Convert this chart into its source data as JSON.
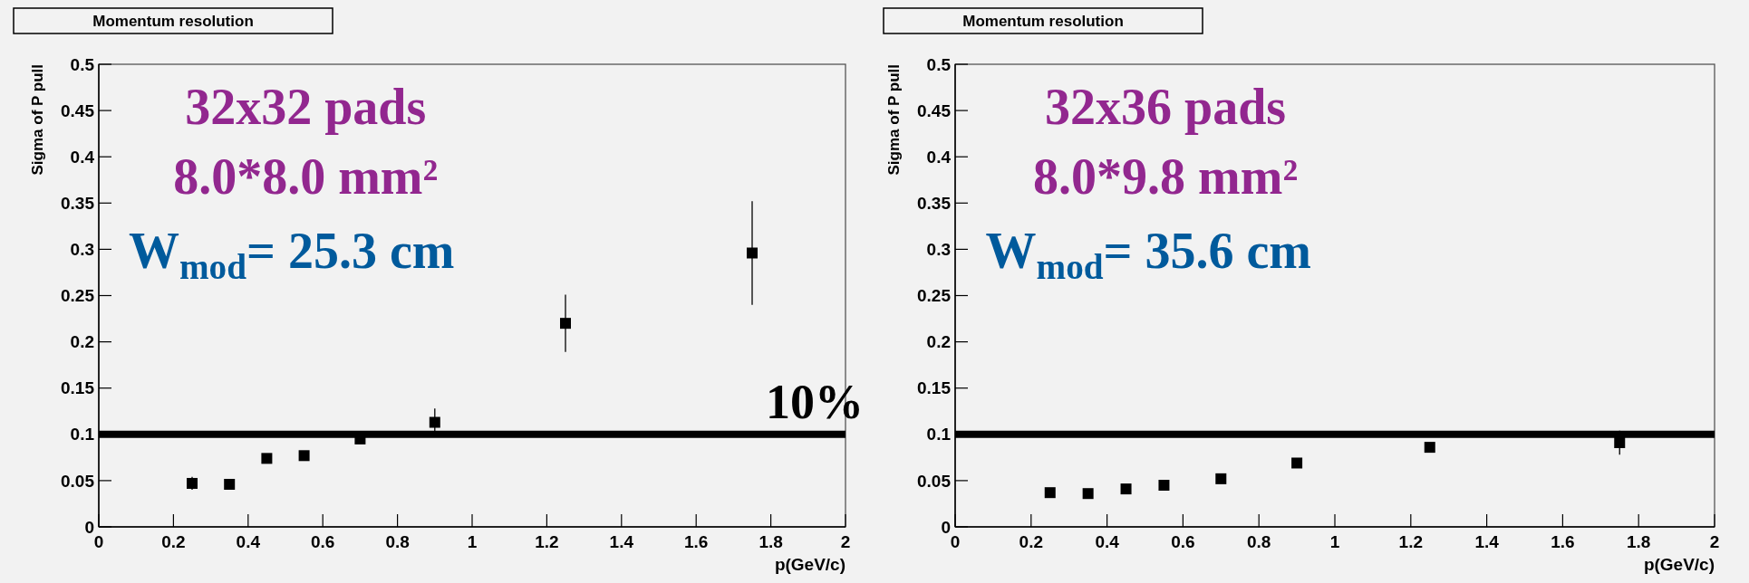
{
  "chart_data": [
    {
      "type": "scatter",
      "title": "Momentum resolution",
      "xlabel": "p(GeV/c)",
      "ylabel": "Sigma of P pull",
      "x": [
        0.25,
        0.35,
        0.45,
        0.55,
        0.7,
        0.9,
        1.25,
        1.75
      ],
      "series": [
        {
          "color": "#000000",
          "values": [
            0.047,
            0.046,
            0.074,
            0.077,
            0.095,
            0.113,
            0.22,
            0.296
          ],
          "errors": [
            0.007,
            null,
            null,
            null,
            null,
            0.015,
            0.031,
            0.056
          ]
        }
      ],
      "xlim": [
        0,
        2
      ],
      "xticks": [
        0,
        0.2,
        0.4,
        0.6,
        0.8,
        1,
        1.2,
        1.4,
        1.6,
        1.8,
        2
      ],
      "ylim": [
        0,
        0.5
      ],
      "yticks": [
        0,
        0.05,
        0.1,
        0.15,
        0.2,
        0.25,
        0.3,
        0.35,
        0.4,
        0.45,
        0.5
      ],
      "marker": "square",
      "grid": false,
      "ref_lines": [
        {
          "axis": "y",
          "value": 0.1,
          "label": "10%",
          "color": "#000000"
        }
      ],
      "annotations": [
        "32x32 pads",
        "8.0*8.0 mm²",
        "W$_{mod}$= 25.3 cm"
      ]
    },
    {
      "type": "scatter",
      "title": "Momentum resolution",
      "xlabel": "p(GeV/c)",
      "ylabel": "Sigma of P pull",
      "x": [
        0.25,
        0.35,
        0.45,
        0.55,
        0.7,
        0.9,
        1.25,
        1.75
      ],
      "series": [
        {
          "color": "#000000",
          "values": [
            0.037,
            0.036,
            0.041,
            0.045,
            0.052,
            0.069,
            0.086,
            0.091
          ],
          "errors": [
            0.005,
            null,
            null,
            null,
            null,
            null,
            null,
            0.013
          ]
        }
      ],
      "xlim": [
        0,
        2
      ],
      "xticks": [
        0,
        0.2,
        0.4,
        0.6,
        0.8,
        1,
        1.2,
        1.4,
        1.6,
        1.8,
        2
      ],
      "ylim": [
        0,
        0.5
      ],
      "yticks": [
        0,
        0.05,
        0.1,
        0.15,
        0.2,
        0.25,
        0.3,
        0.35,
        0.4,
        0.45,
        0.5
      ],
      "marker": "square",
      "grid": false,
      "ref_lines": [
        {
          "axis": "y",
          "value": 0.1,
          "color": "#000000"
        }
      ],
      "annotations": [
        "32x36 pads",
        "8.0*9.8 mm²",
        "W$_{mod}$= 35.6 cm"
      ]
    }
  ]
}
